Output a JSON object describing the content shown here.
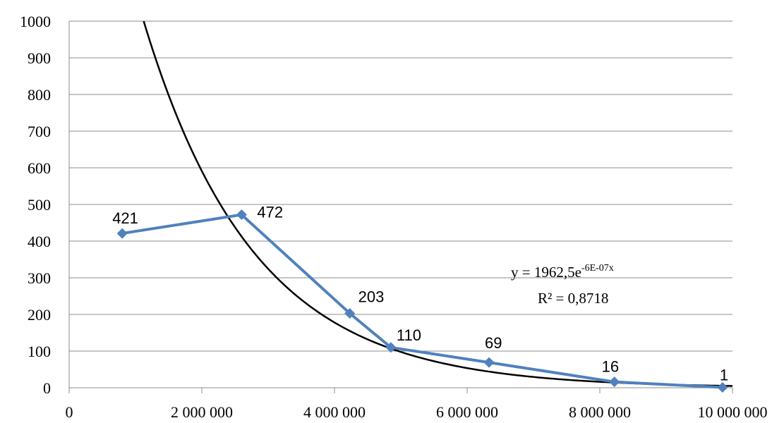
{
  "chart_data": {
    "type": "scatter",
    "title": "",
    "xlabel": "",
    "ylabel": "",
    "xlim": [
      0,
      10000000
    ],
    "ylim": [
      0,
      1000
    ],
    "grid": "horizontal",
    "x_ticks": [
      0,
      2000000,
      4000000,
      6000000,
      8000000,
      10000000
    ],
    "x_tick_labels": [
      "0",
      "2 000 000",
      "4 000 000",
      "6 000 000",
      "8 000 000",
      "10 000 000"
    ],
    "y_ticks": [
      0,
      100,
      200,
      300,
      400,
      500,
      600,
      700,
      800,
      900,
      1000
    ],
    "y_tick_labels": [
      "0",
      "100",
      "200",
      "300",
      "400",
      "500",
      "600",
      "700",
      "800",
      "900",
      "1000"
    ],
    "series": [
      {
        "color": "#4f81bd",
        "marker": "diamond",
        "connected": true,
        "points": [
          {
            "x": 800000,
            "y": 421,
            "label": "421"
          },
          {
            "x": 2600000,
            "y": 472,
            "label": "472"
          },
          {
            "x": 4230000,
            "y": 203,
            "label": "203"
          },
          {
            "x": 4850000,
            "y": 110,
            "label": "110"
          },
          {
            "x": 6330000,
            "y": 69,
            "label": "69"
          },
          {
            "x": 8220000,
            "y": 16,
            "label": "16"
          },
          {
            "x": 9850000,
            "y": 1,
            "label": "1"
          }
        ]
      }
    ],
    "trendline": {
      "type": "exponential",
      "color": "#000000",
      "a": 1962.5,
      "b": -6e-07,
      "equation_prefix": "y = 1962,5e",
      "equation_exponent": "-6E-07x",
      "r_squared_text": "R² = 0,8718"
    }
  }
}
